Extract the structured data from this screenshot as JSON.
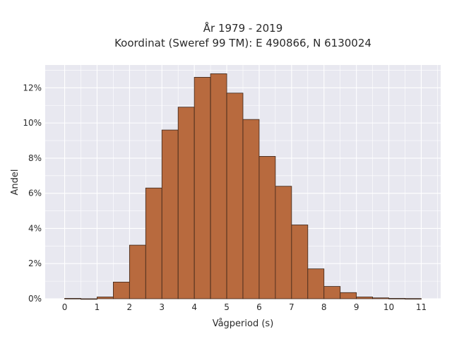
{
  "chart_data": {
    "type": "bar",
    "title_lines": [
      "År 1979 - 2019",
      "Koordinat (Sweref 99 TM): E 490866, N 6130024"
    ],
    "xlabel": "Vågperiod (s)",
    "ylabel": "Andel",
    "bin_width": 0.5,
    "x_bin_starts": [
      0,
      0.5,
      1,
      1.5,
      2,
      2.5,
      3,
      3.5,
      4,
      4.5,
      5,
      5.5,
      6,
      6.5,
      7,
      7.5,
      8,
      8.5,
      9,
      9.5,
      10,
      10.5
    ],
    "values": [
      0.02,
      0.0,
      0.1,
      0.95,
      3.05,
      6.3,
      9.6,
      10.9,
      12.6,
      12.8,
      11.7,
      10.2,
      8.1,
      6.4,
      4.2,
      1.7,
      0.7,
      0.35,
      0.1,
      0.05,
      0.02,
      0.01
    ],
    "xlim": [
      -0.6,
      11.6
    ],
    "ylim": [
      0,
      13.3
    ],
    "x_ticks": [
      0,
      1,
      2,
      3,
      4,
      5,
      6,
      7,
      8,
      9,
      10,
      11
    ],
    "x_tick_labels": [
      "0",
      "1",
      "2",
      "3",
      "4",
      "5",
      "6",
      "7",
      "8",
      "9",
      "10",
      "11"
    ],
    "y_ticks": [
      0,
      2,
      4,
      6,
      8,
      10,
      12
    ],
    "y_tick_labels": [
      "0%",
      "2%",
      "4%",
      "6%",
      "8%",
      "10%",
      "12%"
    ],
    "grid": true,
    "colors": {
      "bar_fill": "#b86a3e",
      "bar_edge": "#3a2418",
      "plot_background": "#e8e8f0",
      "grid": "#ffffff"
    }
  }
}
